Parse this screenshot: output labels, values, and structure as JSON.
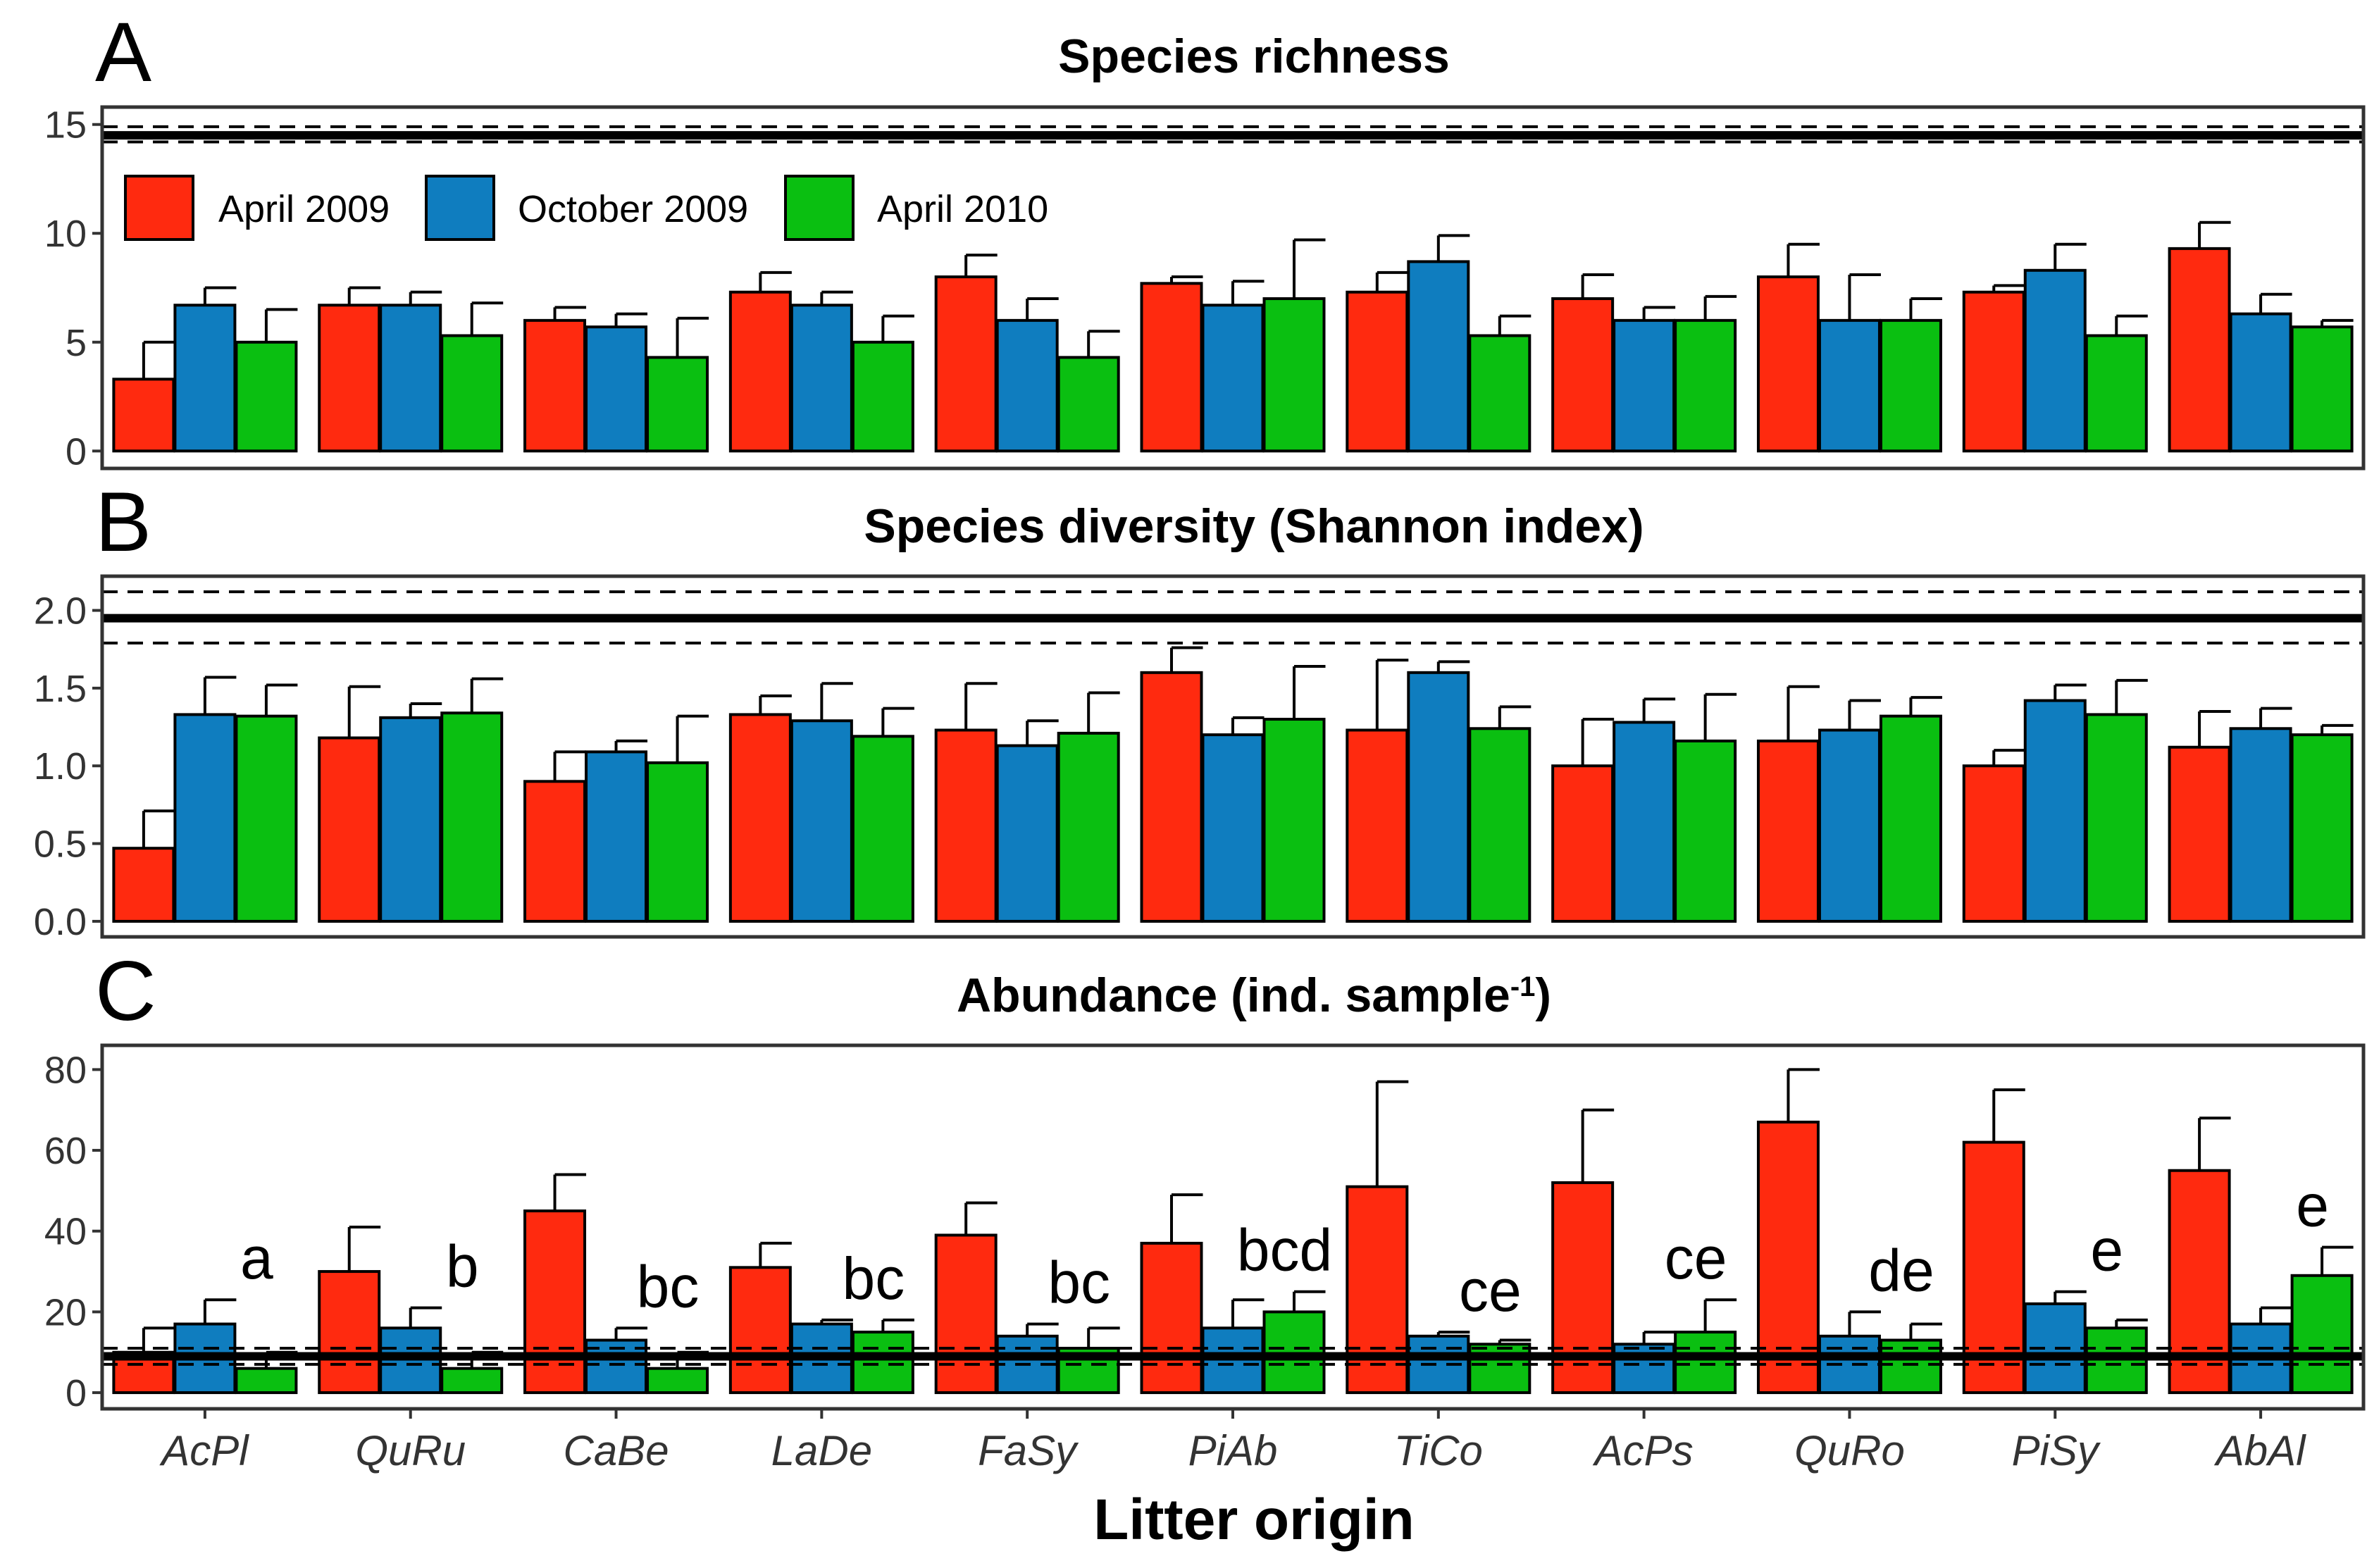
{
  "figure": {
    "x_axis_title": "Litter origin",
    "legend": [
      {
        "label": "April 2009",
        "color": "#ff2a0f"
      },
      {
        "label": "October 2009",
        "color": "#0f7dbf"
      },
      {
        "label": "April 2010",
        "color": "#0abf11"
      }
    ]
  },
  "chart_data": [
    {
      "type": "bar",
      "panel": "A",
      "title": "Species richness",
      "categories": [
        "AcPl",
        "QuRu",
        "CaBe",
        "LaDe",
        "FaSy",
        "PiAb",
        "TiCo",
        "AcPs",
        "QuRo",
        "PiSy",
        "AbAl"
      ],
      "series": [
        {
          "name": "April 2009",
          "values": [
            3.3,
            6.7,
            6.0,
            7.3,
            8.0,
            7.7,
            7.3,
            7.0,
            8.0,
            7.3,
            9.3
          ],
          "errors": [
            1.7,
            0.8,
            0.6,
            0.9,
            1.0,
            0.3,
            0.9,
            1.1,
            1.5,
            0.3,
            1.2
          ]
        },
        {
          "name": "October 2009",
          "values": [
            6.7,
            6.7,
            5.7,
            6.7,
            6.0,
            6.7,
            8.7,
            6.0,
            6.0,
            8.3,
            6.3
          ],
          "errors": [
            0.8,
            0.6,
            0.6,
            0.6,
            1.0,
            1.1,
            1.2,
            0.6,
            2.1,
            1.2,
            0.9
          ]
        },
        {
          "name": "April 2010",
          "values": [
            5.0,
            5.3,
            4.3,
            5.0,
            4.3,
            7.0,
            5.3,
            6.0,
            6.0,
            5.3,
            5.7
          ],
          "errors": [
            1.5,
            1.5,
            1.8,
            1.2,
            1.2,
            2.7,
            0.9,
            1.1,
            1.0,
            0.9,
            0.3
          ]
        }
      ],
      "reference": {
        "mean": 14.5,
        "lower": 14.2,
        "upper": 14.9
      },
      "yticks": [
        0,
        5,
        10,
        15
      ],
      "yticklabels": [
        "0",
        "5",
        "10",
        "15"
      ],
      "ylim": [
        -0.8,
        15.8
      ]
    },
    {
      "type": "bar",
      "panel": "B",
      "title": "Species diversity (Shannon index)",
      "categories": [
        "AcPl",
        "QuRu",
        "CaBe",
        "LaDe",
        "FaSy",
        "PiAb",
        "TiCo",
        "AcPs",
        "QuRo",
        "PiSy",
        "AbAl"
      ],
      "series": [
        {
          "name": "April 2009",
          "values": [
            0.47,
            1.18,
            0.9,
            1.33,
            1.23,
            1.6,
            1.23,
            1.0,
            1.16,
            1.0,
            1.12
          ],
          "errors": [
            0.24,
            0.33,
            0.19,
            0.12,
            0.3,
            0.16,
            0.45,
            0.3,
            0.35,
            0.1,
            0.23
          ]
        },
        {
          "name": "October 2009",
          "values": [
            1.33,
            1.31,
            1.09,
            1.29,
            1.13,
            1.2,
            1.6,
            1.28,
            1.23,
            1.42,
            1.24
          ],
          "errors": [
            0.24,
            0.09,
            0.07,
            0.24,
            0.16,
            0.11,
            0.07,
            0.15,
            0.19,
            0.1,
            0.13
          ]
        },
        {
          "name": "April 2010",
          "values": [
            1.32,
            1.34,
            1.02,
            1.19,
            1.21,
            1.3,
            1.24,
            1.16,
            1.32,
            1.33,
            1.2
          ],
          "errors": [
            0.2,
            0.22,
            0.3,
            0.18,
            0.26,
            0.34,
            0.14,
            0.3,
            0.12,
            0.22,
            0.06
          ]
        }
      ],
      "reference": {
        "mean": 1.95,
        "lower": 1.79,
        "upper": 2.12
      },
      "yticks": [
        0.0,
        0.5,
        1.0,
        1.5,
        2.0
      ],
      "yticklabels": [
        "0.0",
        "0.5",
        "1.0",
        "1.5",
        "2.0"
      ],
      "ylim": [
        -0.1,
        2.22
      ]
    },
    {
      "type": "bar",
      "panel": "C",
      "title": "Abundance (ind. sample",
      "title_superscript": "-1",
      "title_suffix": ")",
      "categories": [
        "AcPl",
        "QuRu",
        "CaBe",
        "LaDe",
        "FaSy",
        "PiAb",
        "TiCo",
        "AcPs",
        "QuRo",
        "PiSy",
        "AbAl"
      ],
      "series": [
        {
          "name": "April 2009",
          "values": [
            10,
            30,
            45,
            31,
            39,
            37,
            51,
            52,
            67,
            62,
            55
          ],
          "errors": [
            6,
            11,
            9,
            6,
            8,
            12,
            26,
            18,
            13,
            13,
            13
          ]
        },
        {
          "name": "October 2009",
          "values": [
            17,
            16,
            13,
            17,
            14,
            16,
            14,
            12,
            14,
            22,
            17
          ],
          "errors": [
            6,
            5,
            3,
            1,
            3,
            7,
            1,
            3,
            6,
            3,
            4
          ]
        },
        {
          "name": "April 2010",
          "values": [
            6,
            6,
            6,
            15,
            11,
            20,
            12,
            15,
            13,
            16,
            29
          ],
          "errors": [
            4,
            4,
            4,
            3,
            5,
            5,
            1,
            8,
            4,
            2,
            7
          ]
        }
      ],
      "significance_letters": [
        "a",
        "b",
        "bc",
        "bc",
        "bc",
        "bcd",
        "ce",
        "ce",
        "de",
        "e",
        "e"
      ],
      "reference": {
        "mean": 9,
        "lower": 7,
        "upper": 11
      },
      "yticks": [
        0,
        20,
        40,
        60,
        80
      ],
      "yticklabels": [
        "0",
        "20",
        "40",
        "60",
        "80"
      ],
      "ylim": [
        -4,
        86
      ]
    }
  ]
}
